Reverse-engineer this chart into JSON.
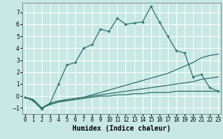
{
  "xlabel": "Humidex (Indice chaleur)",
  "bg_color": "#c8e8e4",
  "grid_color": "#ffffff",
  "line_color": "#2a7068",
  "x_ticks": [
    0,
    1,
    2,
    3,
    4,
    5,
    6,
    7,
    8,
    9,
    10,
    11,
    12,
    13,
    14,
    15,
    16,
    17,
    18,
    19,
    20,
    21,
    22,
    23
  ],
  "ylim": [
    -1.5,
    7.8
  ],
  "xlim": [
    -0.3,
    23.3
  ],
  "curve1_x": [
    0,
    1,
    2,
    3,
    4,
    5,
    6,
    7,
    8,
    9,
    10,
    11,
    12,
    13,
    14,
    15,
    16,
    17,
    18,
    19,
    20,
    21,
    22,
    23
  ],
  "curve1_y": [
    -0.1,
    -0.4,
    -1.1,
    -0.6,
    1.0,
    2.6,
    2.8,
    4.0,
    4.3,
    5.6,
    5.4,
    6.5,
    6.0,
    6.1,
    6.2,
    7.5,
    6.2,
    5.0,
    3.8,
    3.6,
    1.6,
    1.8,
    0.7,
    0.4
  ],
  "curve2_x": [
    0,
    1,
    2,
    3,
    4,
    5,
    6,
    7,
    8,
    9,
    10,
    11,
    12,
    13,
    14,
    15,
    16,
    17,
    18,
    19,
    20,
    21,
    22,
    23
  ],
  "curve2_y": [
    -0.1,
    -0.3,
    -1.0,
    -0.6,
    -0.4,
    -0.3,
    -0.2,
    -0.1,
    0.1,
    0.3,
    0.5,
    0.7,
    0.9,
    1.1,
    1.3,
    1.5,
    1.7,
    1.9,
    2.2,
    2.5,
    2.8,
    3.2,
    3.4,
    3.5
  ],
  "curve3_x": [
    0,
    1,
    2,
    3,
    4,
    5,
    6,
    7,
    8,
    9,
    10,
    11,
    12,
    13,
    14,
    15,
    16,
    17,
    18,
    19,
    20,
    21,
    22,
    23
  ],
  "curve3_y": [
    -0.1,
    -0.3,
    -1.0,
    -0.7,
    -0.5,
    -0.3,
    -0.2,
    -0.1,
    0.0,
    0.1,
    0.2,
    0.3,
    0.4,
    0.5,
    0.6,
    0.7,
    0.8,
    0.9,
    1.0,
    1.1,
    1.2,
    1.4,
    1.5,
    1.6
  ],
  "curve4_x": [
    0,
    1,
    2,
    3,
    4,
    5,
    6,
    7,
    8,
    9,
    10,
    11,
    12,
    13,
    14,
    15,
    16,
    17,
    18,
    19,
    20,
    21,
    22,
    23
  ],
  "curve4_y": [
    -0.1,
    -0.3,
    -1.0,
    -0.7,
    -0.5,
    -0.4,
    -0.3,
    -0.2,
    -0.1,
    0.0,
    0.0,
    0.1,
    0.1,
    0.2,
    0.2,
    0.3,
    0.3,
    0.3,
    0.4,
    0.4,
    0.4,
    0.4,
    0.4,
    0.4
  ],
  "tick_fontsize": 5.5,
  "xlabel_fontsize": 7,
  "xlabel_fontweight": "bold"
}
